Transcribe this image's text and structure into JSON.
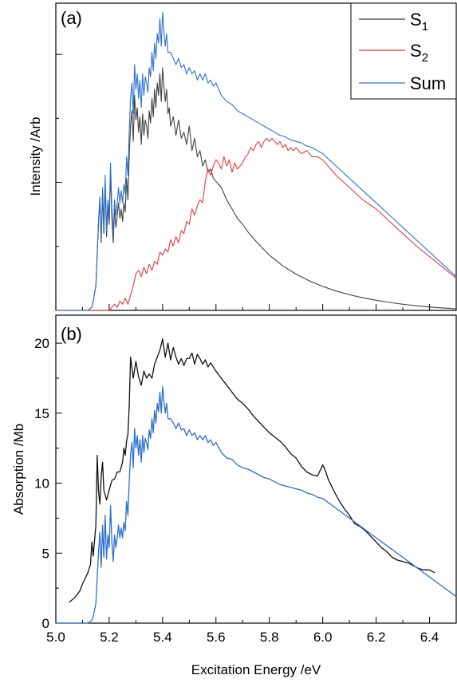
{
  "chart_data": [
    {
      "type": "line",
      "panel_label": "(a)",
      "title": "",
      "xlabel": "",
      "ylabel": "Intensity /Arb",
      "xlim": [
        5.0,
        6.5
      ],
      "ylim": [
        0,
        1.0
      ],
      "y_tick_labels_shown": false,
      "grid": false,
      "legend": "top-right",
      "series": [
        {
          "name": "S",
          "subscript": "1",
          "color": "#404040",
          "x": [
            5.0,
            5.1,
            5.12,
            5.135,
            5.14,
            5.15,
            5.16,
            5.165,
            5.17,
            5.175,
            5.18,
            5.185,
            5.19,
            5.195,
            5.2,
            5.205,
            5.21,
            5.215,
            5.22,
            5.225,
            5.23,
            5.235,
            5.24,
            5.245,
            5.25,
            5.255,
            5.26,
            5.265,
            5.27,
            5.275,
            5.28,
            5.285,
            5.29,
            5.295,
            5.3,
            5.305,
            5.31,
            5.315,
            5.32,
            5.325,
            5.33,
            5.335,
            5.34,
            5.345,
            5.35,
            5.355,
            5.36,
            5.365,
            5.37,
            5.375,
            5.38,
            5.385,
            5.39,
            5.395,
            5.4,
            5.405,
            5.41,
            5.415,
            5.42,
            5.425,
            5.43,
            5.44,
            5.45,
            5.46,
            5.47,
            5.48,
            5.49,
            5.5,
            5.51,
            5.52,
            5.53,
            5.54,
            5.55,
            5.56,
            5.57,
            5.58,
            5.59,
            5.6,
            5.62,
            5.64,
            5.66,
            5.68,
            5.7,
            5.72,
            5.75,
            5.8,
            5.85,
            5.9,
            5.95,
            6.0,
            6.05,
            6.1,
            6.15,
            6.2,
            6.25,
            6.3,
            6.35,
            6.4,
            6.45,
            6.5
          ],
          "y": [
            0.0,
            0.0,
            0.0,
            0.01,
            0.03,
            0.08,
            0.28,
            0.36,
            0.22,
            0.38,
            0.25,
            0.41,
            0.24,
            0.34,
            0.28,
            0.45,
            0.3,
            0.22,
            0.33,
            0.27,
            0.31,
            0.35,
            0.3,
            0.33,
            0.29,
            0.35,
            0.32,
            0.43,
            0.36,
            0.5,
            0.6,
            0.65,
            0.55,
            0.7,
            0.62,
            0.66,
            0.58,
            0.63,
            0.54,
            0.64,
            0.57,
            0.62,
            0.6,
            0.56,
            0.65,
            0.61,
            0.69,
            0.63,
            0.72,
            0.66,
            0.74,
            0.7,
            0.77,
            0.68,
            0.79,
            0.73,
            0.68,
            0.72,
            0.64,
            0.66,
            0.6,
            0.63,
            0.57,
            0.62,
            0.56,
            0.58,
            0.54,
            0.6,
            0.52,
            0.56,
            0.5,
            0.52,
            0.47,
            0.49,
            0.45,
            0.46,
            0.43,
            0.42,
            0.4,
            0.36,
            0.33,
            0.3,
            0.28,
            0.255,
            0.225,
            0.18,
            0.145,
            0.118,
            0.096,
            0.078,
            0.063,
            0.051,
            0.041,
            0.033,
            0.026,
            0.02,
            0.015,
            0.011,
            0.008,
            0.005
          ]
        },
        {
          "name": "S",
          "subscript": "2",
          "color": "#e63b3b",
          "x": [
            5.0,
            5.2,
            5.22,
            5.23,
            5.24,
            5.25,
            5.26,
            5.27,
            5.28,
            5.29,
            5.3,
            5.31,
            5.32,
            5.33,
            5.34,
            5.35,
            5.36,
            5.37,
            5.38,
            5.39,
            5.4,
            5.41,
            5.42,
            5.43,
            5.44,
            5.45,
            5.46,
            5.47,
            5.48,
            5.49,
            5.5,
            5.51,
            5.52,
            5.53,
            5.54,
            5.55,
            5.56,
            5.57,
            5.58,
            5.59,
            5.6,
            5.61,
            5.62,
            5.63,
            5.64,
            5.65,
            5.66,
            5.67,
            5.68,
            5.69,
            5.7,
            5.71,
            5.72,
            5.73,
            5.74,
            5.75,
            5.76,
            5.77,
            5.78,
            5.79,
            5.8,
            5.81,
            5.82,
            5.83,
            5.84,
            5.85,
            5.86,
            5.87,
            5.88,
            5.89,
            5.9,
            5.92,
            5.94,
            5.96,
            5.98,
            6.0,
            6.05,
            6.1,
            6.15,
            6.2,
            6.25,
            6.3,
            6.35,
            6.4,
            6.45,
            6.5
          ],
          "y": [
            0.0,
            0.0,
            0.02,
            0.01,
            0.03,
            0.02,
            0.04,
            0.02,
            0.05,
            0.08,
            0.12,
            0.13,
            0.11,
            0.14,
            0.12,
            0.15,
            0.13,
            0.16,
            0.15,
            0.19,
            0.18,
            0.2,
            0.19,
            0.23,
            0.21,
            0.24,
            0.22,
            0.26,
            0.25,
            0.29,
            0.28,
            0.33,
            0.31,
            0.34,
            0.36,
            0.35,
            0.42,
            0.46,
            0.44,
            0.47,
            0.49,
            0.48,
            0.46,
            0.5,
            0.47,
            0.49,
            0.45,
            0.48,
            0.46,
            0.47,
            0.48,
            0.5,
            0.51,
            0.53,
            0.52,
            0.54,
            0.55,
            0.53,
            0.55,
            0.56,
            0.55,
            0.56,
            0.55,
            0.54,
            0.55,
            0.53,
            0.54,
            0.52,
            0.53,
            0.52,
            0.53,
            0.51,
            0.52,
            0.5,
            0.5,
            0.49,
            0.44,
            0.4,
            0.36,
            0.33,
            0.29,
            0.25,
            0.21,
            0.175,
            0.14,
            0.105
          ]
        },
        {
          "name": "Sum",
          "color": "#2b6fcf",
          "x": [
            5.0,
            5.1,
            5.12,
            5.135,
            5.14,
            5.15,
            5.16,
            5.165,
            5.17,
            5.175,
            5.18,
            5.185,
            5.19,
            5.195,
            5.2,
            5.205,
            5.21,
            5.215,
            5.22,
            5.225,
            5.23,
            5.235,
            5.24,
            5.245,
            5.25,
            5.255,
            5.26,
            5.265,
            5.27,
            5.275,
            5.28,
            5.285,
            5.29,
            5.295,
            5.3,
            5.305,
            5.31,
            5.315,
            5.32,
            5.325,
            5.33,
            5.335,
            5.34,
            5.345,
            5.35,
            5.355,
            5.36,
            5.365,
            5.37,
            5.375,
            5.38,
            5.385,
            5.39,
            5.395,
            5.4,
            5.405,
            5.41,
            5.415,
            5.42,
            5.43,
            5.44,
            5.45,
            5.46,
            5.47,
            5.48,
            5.49,
            5.5,
            5.51,
            5.52,
            5.53,
            5.54,
            5.55,
            5.56,
            5.57,
            5.58,
            5.59,
            5.6,
            5.62,
            5.64,
            5.66,
            5.68,
            5.7,
            5.72,
            5.74,
            5.76,
            5.78,
            5.8,
            5.82,
            5.84,
            5.86,
            5.88,
            5.9,
            5.92,
            5.94,
            5.96,
            5.98,
            6.0,
            6.05,
            6.1,
            6.15,
            6.2,
            6.25,
            6.3,
            6.35,
            6.4,
            6.45,
            6.5
          ],
          "y": [
            0.0,
            0.0,
            0.0,
            0.01,
            0.03,
            0.08,
            0.29,
            0.37,
            0.23,
            0.4,
            0.27,
            0.44,
            0.26,
            0.36,
            0.31,
            0.48,
            0.33,
            0.25,
            0.36,
            0.31,
            0.35,
            0.4,
            0.35,
            0.39,
            0.35,
            0.41,
            0.38,
            0.5,
            0.44,
            0.58,
            0.69,
            0.74,
            0.64,
            0.8,
            0.72,
            0.77,
            0.69,
            0.75,
            0.66,
            0.77,
            0.7,
            0.76,
            0.74,
            0.71,
            0.79,
            0.76,
            0.84,
            0.78,
            0.87,
            0.82,
            0.9,
            0.87,
            0.95,
            0.86,
            0.97,
            0.91,
            0.86,
            0.9,
            0.84,
            0.84,
            0.82,
            0.8,
            0.82,
            0.79,
            0.8,
            0.77,
            0.79,
            0.77,
            0.78,
            0.75,
            0.77,
            0.75,
            0.77,
            0.74,
            0.75,
            0.73,
            0.74,
            0.7,
            0.68,
            0.67,
            0.65,
            0.64,
            0.63,
            0.62,
            0.61,
            0.6,
            0.59,
            0.58,
            0.57,
            0.565,
            0.555,
            0.55,
            0.545,
            0.535,
            0.53,
            0.52,
            0.51,
            0.47,
            0.43,
            0.39,
            0.35,
            0.31,
            0.27,
            0.23,
            0.19,
            0.15,
            0.11
          ]
        }
      ]
    },
    {
      "type": "line",
      "panel_label": "(b)",
      "title": "",
      "xlabel": "Excitation Energy /eV",
      "ylabel": "Absorption /Mb",
      "xlim": [
        5.0,
        6.5
      ],
      "ylim": [
        0,
        22
      ],
      "x_ticks": [
        "5.0",
        "5.2",
        "5.4",
        "5.6",
        "5.8",
        "6.0",
        "6.2",
        "6.4"
      ],
      "y_ticks": [
        "0",
        "5",
        "10",
        "15",
        "20"
      ],
      "grid": false,
      "legend": "none",
      "series": [
        {
          "color": "#111111",
          "x": [
            5.05,
            5.07,
            5.09,
            5.1,
            5.11,
            5.12,
            5.13,
            5.135,
            5.14,
            5.15,
            5.155,
            5.16,
            5.165,
            5.17,
            5.175,
            5.18,
            5.19,
            5.2,
            5.21,
            5.22,
            5.23,
            5.24,
            5.25,
            5.255,
            5.26,
            5.265,
            5.27,
            5.275,
            5.28,
            5.29,
            5.3,
            5.31,
            5.32,
            5.33,
            5.34,
            5.35,
            5.36,
            5.37,
            5.38,
            5.39,
            5.4,
            5.41,
            5.42,
            5.43,
            5.44,
            5.45,
            5.46,
            5.47,
            5.48,
            5.49,
            5.5,
            5.51,
            5.52,
            5.53,
            5.54,
            5.55,
            5.56,
            5.57,
            5.58,
            5.6,
            5.62,
            5.64,
            5.66,
            5.68,
            5.7,
            5.72,
            5.74,
            5.76,
            5.78,
            5.8,
            5.82,
            5.84,
            5.86,
            5.88,
            5.9,
            5.92,
            5.94,
            5.96,
            5.98,
            5.99,
            6.0,
            6.01,
            6.02,
            6.04,
            6.06,
            6.08,
            6.1,
            6.12,
            6.14,
            6.16,
            6.18,
            6.2,
            6.22,
            6.24,
            6.26,
            6.28,
            6.3,
            6.32,
            6.34,
            6.36,
            6.38,
            6.4,
            6.42
          ],
          "y": [
            1.5,
            1.8,
            2.3,
            2.8,
            3.2,
            3.6,
            4.2,
            5.8,
            4.8,
            7.0,
            12.0,
            9.5,
            8.5,
            10.5,
            11.5,
            9.5,
            8.8,
            9.5,
            10.2,
            10.3,
            10.8,
            10.8,
            11.5,
            12.5,
            12.0,
            13.0,
            13.5,
            15.5,
            19.0,
            17.5,
            18.7,
            17.6,
            17.0,
            18.0,
            17.5,
            17.8,
            17.5,
            18.5,
            19.0,
            19.5,
            20.3,
            19.0,
            20.0,
            18.8,
            19.7,
            19.0,
            18.5,
            18.9,
            18.4,
            18.9,
            18.9,
            19.3,
            18.5,
            19.2,
            18.9,
            18.5,
            18.8,
            18.3,
            18.6,
            18.0,
            17.5,
            17.0,
            16.5,
            16.0,
            15.7,
            15.3,
            14.8,
            14.4,
            14.0,
            13.6,
            13.3,
            13.0,
            12.6,
            12.1,
            11.8,
            11.2,
            10.8,
            10.6,
            10.5,
            10.9,
            11.3,
            10.9,
            10.3,
            9.5,
            8.8,
            8.2,
            7.7,
            7.1,
            6.9,
            6.6,
            6.2,
            5.8,
            5.4,
            5.1,
            4.7,
            4.5,
            4.4,
            4.3,
            4.1,
            3.9,
            3.8,
            3.8,
            3.6
          ]
        },
        {
          "color": "#2b6fcf",
          "x": [
            5.0,
            5.1,
            5.12,
            5.135,
            5.14,
            5.15,
            5.16,
            5.165,
            5.17,
            5.175,
            5.18,
            5.185,
            5.19,
            5.195,
            5.2,
            5.205,
            5.21,
            5.215,
            5.22,
            5.225,
            5.23,
            5.235,
            5.24,
            5.245,
            5.25,
            5.255,
            5.26,
            5.265,
            5.27,
            5.275,
            5.28,
            5.285,
            5.29,
            5.295,
            5.3,
            5.305,
            5.31,
            5.315,
            5.32,
            5.325,
            5.33,
            5.335,
            5.34,
            5.345,
            5.35,
            5.355,
            5.36,
            5.365,
            5.37,
            5.375,
            5.38,
            5.385,
            5.39,
            5.395,
            5.4,
            5.405,
            5.41,
            5.415,
            5.42,
            5.43,
            5.44,
            5.45,
            5.46,
            5.47,
            5.48,
            5.49,
            5.5,
            5.51,
            5.52,
            5.53,
            5.54,
            5.55,
            5.56,
            5.57,
            5.58,
            5.59,
            5.6,
            5.62,
            5.64,
            5.66,
            5.68,
            5.7,
            5.72,
            5.74,
            5.76,
            5.78,
            5.8,
            5.82,
            5.84,
            5.86,
            5.88,
            5.9,
            5.92,
            5.94,
            5.96,
            5.98,
            6.0,
            6.05,
            6.1,
            6.15,
            6.2,
            6.25,
            6.3,
            6.35,
            6.4,
            6.45,
            6.5
          ],
          "y": [
            0.0,
            0.0,
            0.0,
            0.2,
            0.5,
            1.4,
            5.0,
            6.5,
            4.0,
            7.0,
            4.7,
            7.7,
            4.6,
            6.3,
            5.4,
            8.4,
            5.8,
            4.4,
            6.3,
            5.4,
            6.1,
            7.0,
            6.1,
            6.8,
            6.1,
            7.2,
            6.6,
            8.7,
            7.7,
            10.1,
            12.0,
            12.9,
            11.1,
            13.9,
            12.5,
            13.4,
            12.0,
            13.1,
            11.5,
            13.4,
            12.2,
            13.2,
            12.9,
            12.4,
            13.8,
            13.2,
            14.6,
            13.6,
            15.2,
            14.3,
            15.7,
            15.1,
            16.5,
            15.0,
            16.9,
            15.9,
            15.0,
            15.7,
            14.6,
            14.6,
            14.3,
            13.9,
            14.3,
            13.8,
            13.9,
            13.4,
            13.8,
            13.4,
            13.6,
            13.1,
            13.4,
            13.1,
            13.4,
            12.9,
            13.1,
            12.7,
            12.9,
            12.2,
            11.8,
            11.7,
            11.3,
            11.1,
            11.0,
            10.8,
            10.6,
            10.4,
            10.3,
            10.1,
            9.9,
            9.8,
            9.7,
            9.6,
            9.5,
            9.3,
            9.2,
            9.0,
            8.9,
            8.2,
            7.5,
            6.8,
            6.1,
            5.4,
            4.7,
            4.0,
            3.3,
            2.6,
            1.9
          ]
        }
      ]
    }
  ]
}
